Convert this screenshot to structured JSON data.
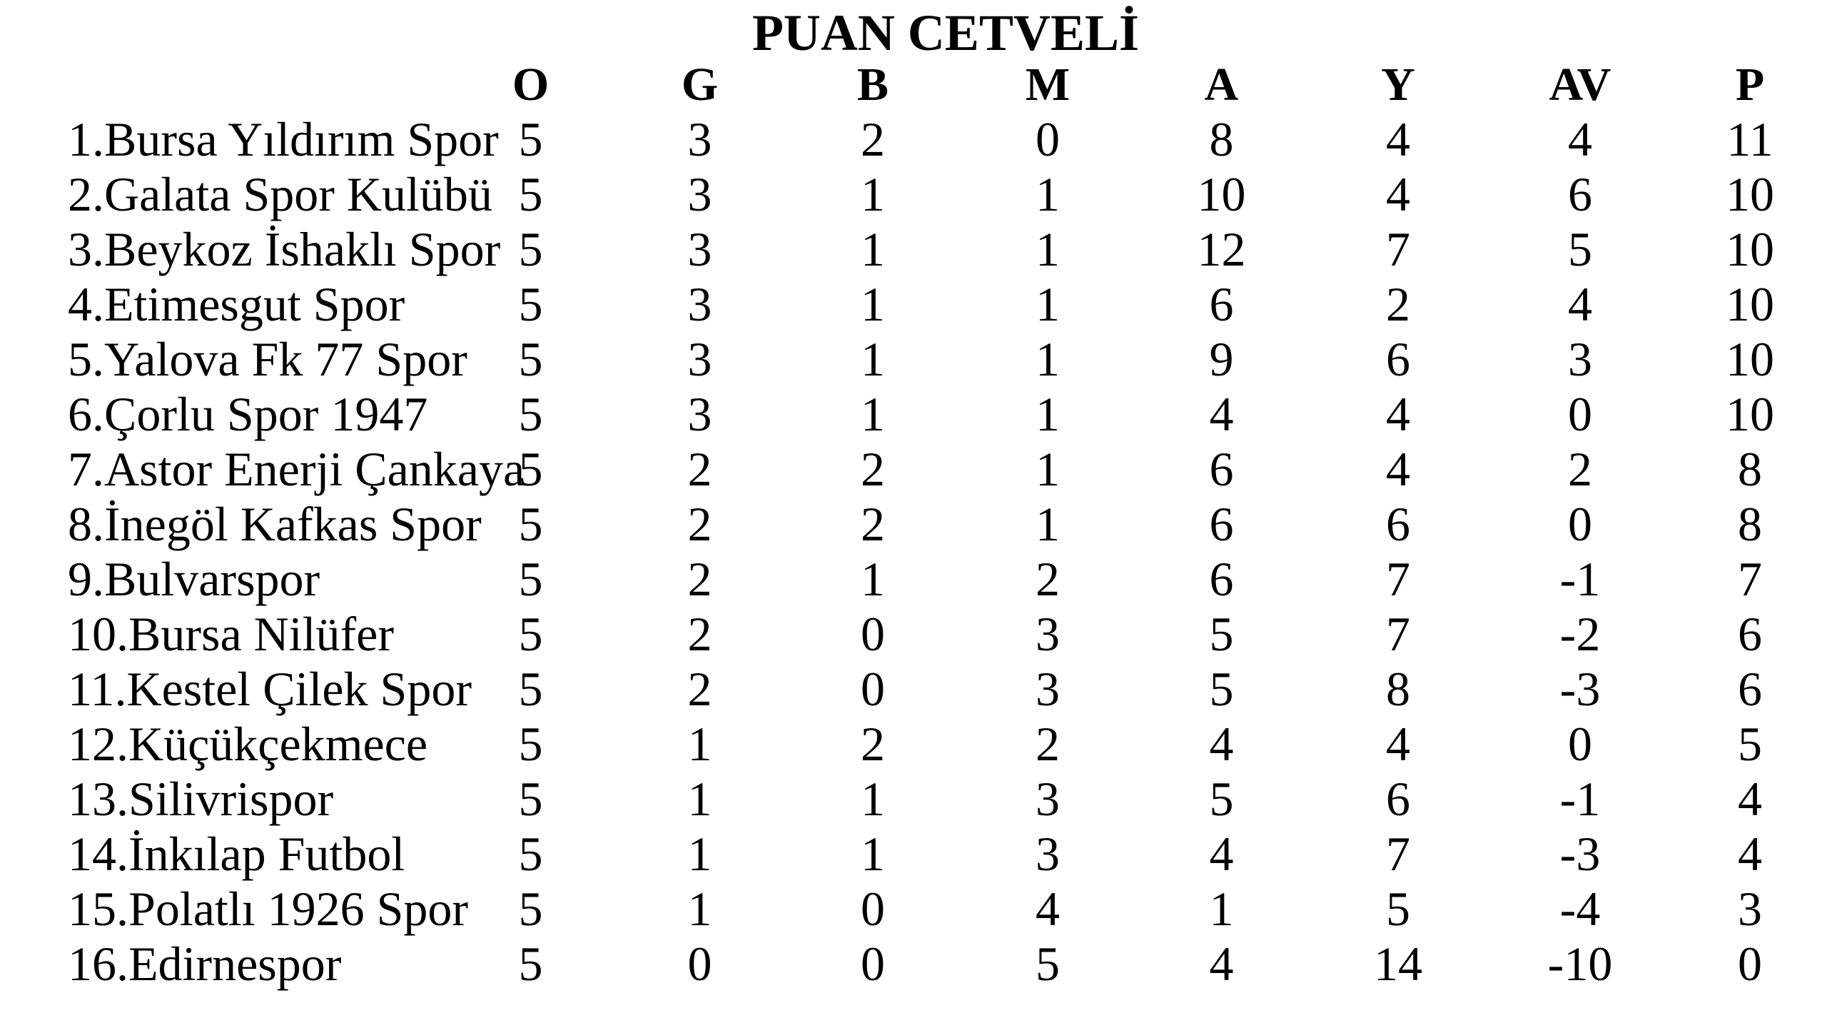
{
  "colors": {
    "background": "#ffffff",
    "text": "#000000"
  },
  "chart_data": {
    "type": "table",
    "title": "PUAN CETVELİ",
    "columns": [
      "O",
      "G",
      "B",
      "M",
      "A",
      "Y",
      "AV",
      "P"
    ],
    "rows": [
      {
        "team": "1.Bursa Yıldırım Spor",
        "o": 5,
        "g": 3,
        "b": 2,
        "m": 0,
        "a": 8,
        "y": 4,
        "av": 4,
        "p": 11
      },
      {
        "team": "2.Galata Spor Kulübü",
        "o": 5,
        "g": 3,
        "b": 1,
        "m": 1,
        "a": 10,
        "y": 4,
        "av": 6,
        "p": 10
      },
      {
        "team": "3.Beykoz İshaklı Spor",
        "o": 5,
        "g": 3,
        "b": 1,
        "m": 1,
        "a": 12,
        "y": 7,
        "av": 5,
        "p": 10
      },
      {
        "team": "4.Etimesgut Spor",
        "o": 5,
        "g": 3,
        "b": 1,
        "m": 1,
        "a": 6,
        "y": 2,
        "av": 4,
        "p": 10
      },
      {
        "team": "5.Yalova Fk 77 Spor",
        "o": 5,
        "g": 3,
        "b": 1,
        "m": 1,
        "a": 9,
        "y": 6,
        "av": 3,
        "p": 10
      },
      {
        "team": "6.Çorlu Spor 1947",
        "o": 5,
        "g": 3,
        "b": 1,
        "m": 1,
        "a": 4,
        "y": 4,
        "av": 0,
        "p": 10
      },
      {
        "team": "7.Astor Enerji Çankaya",
        "o": 5,
        "g": 2,
        "b": 2,
        "m": 1,
        "a": 6,
        "y": 4,
        "av": 2,
        "p": 8
      },
      {
        "team": "8.İnegöl Kafkas Spor",
        "o": 5,
        "g": 2,
        "b": 2,
        "m": 1,
        "a": 6,
        "y": 6,
        "av": 0,
        "p": 8
      },
      {
        "team": "9.Bulvarspor",
        "o": 5,
        "g": 2,
        "b": 1,
        "m": 2,
        "a": 6,
        "y": 7,
        "av": -1,
        "p": 7
      },
      {
        "team": "10.Bursa Nilüfer",
        "o": 5,
        "g": 2,
        "b": 0,
        "m": 3,
        "a": 5,
        "y": 7,
        "av": -2,
        "p": 6
      },
      {
        "team": "11.Kestel Çilek Spor",
        "o": 5,
        "g": 2,
        "b": 0,
        "m": 3,
        "a": 5,
        "y": 8,
        "av": -3,
        "p": 6
      },
      {
        "team": "12.Küçükçekmece",
        "o": 5,
        "g": 1,
        "b": 2,
        "m": 2,
        "a": 4,
        "y": 4,
        "av": 0,
        "p": 5
      },
      {
        "team": "13.Silivrispor",
        "o": 5,
        "g": 1,
        "b": 1,
        "m": 3,
        "a": 5,
        "y": 6,
        "av": -1,
        "p": 4
      },
      {
        "team": "14.İnkılap Futbol",
        "o": 5,
        "g": 1,
        "b": 1,
        "m": 3,
        "a": 4,
        "y": 7,
        "av": -3,
        "p": 4
      },
      {
        "team": "15.Polatlı 1926 Spor",
        "o": 5,
        "g": 1,
        "b": 0,
        "m": 4,
        "a": 1,
        "y": 5,
        "av": -4,
        "p": 3
      },
      {
        "team": "16.Edirnespor",
        "o": 5,
        "g": 0,
        "b": 0,
        "m": 5,
        "a": 4,
        "y": 14,
        "av": -10,
        "p": 0
      }
    ]
  }
}
